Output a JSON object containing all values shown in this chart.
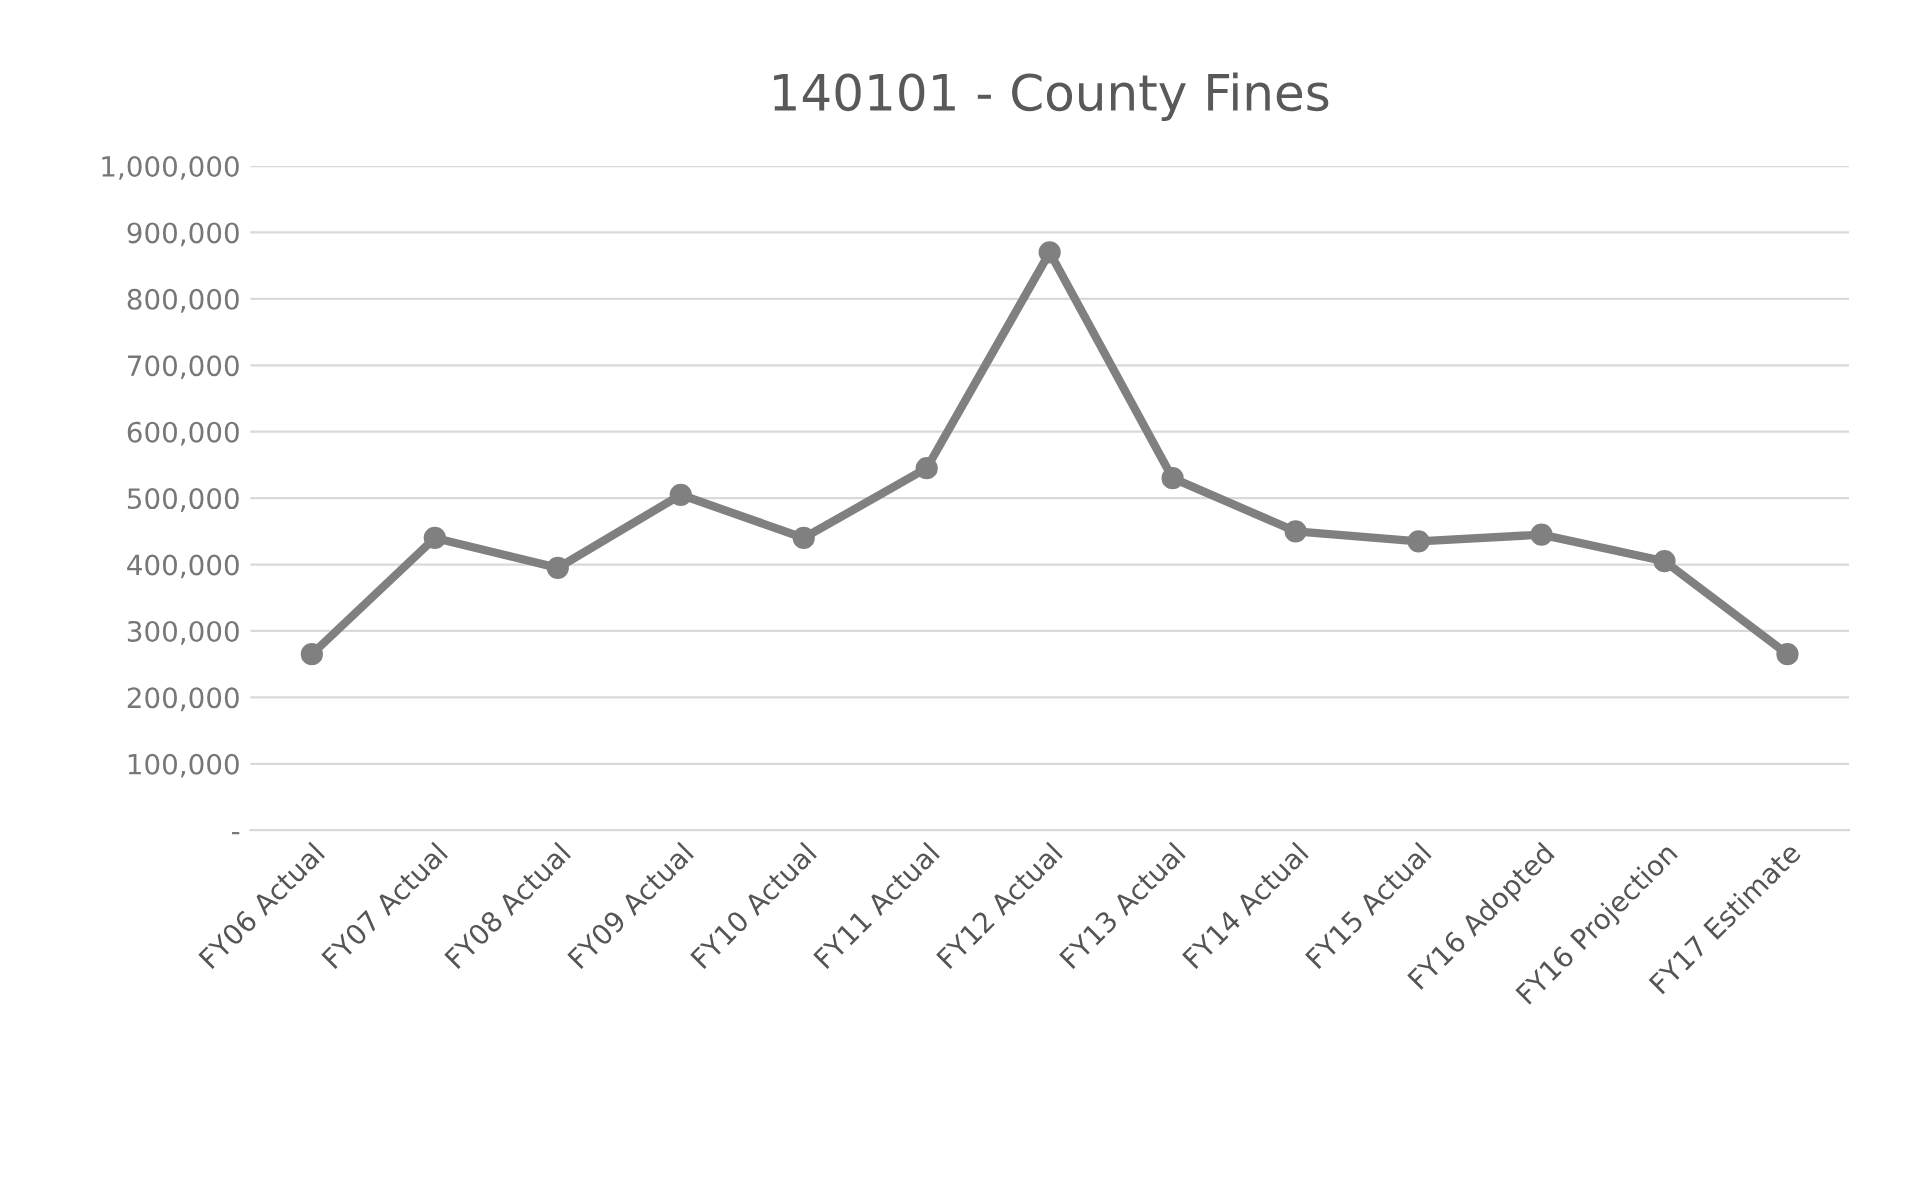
{
  "chart_data": {
    "type": "line",
    "title": "140101 - County Fines",
    "categories": [
      "FY06 Actual",
      "FY07 Actual",
      "FY08 Actual",
      "FY09 Actual",
      "FY10 Actual",
      "FY11 Actual",
      "FY12 Actual",
      "FY13 Actual",
      "FY14 Actual",
      "FY15 Actual",
      "FY16 Adopted",
      "FY16 Projection",
      "FY17 Estimate"
    ],
    "series": [
      {
        "color": "#808080",
        "values": [
          265000,
          440000,
          395000,
          505000,
          440000,
          545000,
          870000,
          530000,
          450000,
          435000,
          445000,
          405000,
          265000
        ]
      }
    ],
    "ylim": [
      0,
      1000000
    ],
    "yticks": [
      {
        "value": 0,
        "label": "-"
      },
      {
        "value": 100000,
        "label": "100,000"
      },
      {
        "value": 200000,
        "label": "200,000"
      },
      {
        "value": 300000,
        "label": "300,000"
      },
      {
        "value": 400000,
        "label": "400,000"
      },
      {
        "value": 500000,
        "label": "500,000"
      },
      {
        "value": 600000,
        "label": "600,000"
      },
      {
        "value": 700000,
        "label": "700,000"
      },
      {
        "value": 800000,
        "label": "800,000"
      },
      {
        "value": 900000,
        "label": "900,000"
      },
      {
        "value": 1000000,
        "label": "1,000,000"
      }
    ],
    "grid": "y",
    "marker": "circle",
    "line_style": "solid",
    "legend": false
  }
}
